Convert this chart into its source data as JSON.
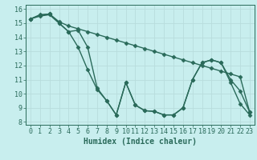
{
  "xlabel": "Humidex (Indice chaleur)",
  "bg_color": "#c8eeee",
  "grid_color": "#b8dddd",
  "line_color": "#2a6a5a",
  "xlim": [
    -0.5,
    23.5
  ],
  "ylim": [
    7.8,
    16.3
  ],
  "yticks": [
    8,
    9,
    10,
    11,
    12,
    13,
    14,
    15,
    16
  ],
  "xticks": [
    0,
    1,
    2,
    3,
    4,
    5,
    6,
    7,
    8,
    9,
    10,
    11,
    12,
    13,
    14,
    15,
    16,
    17,
    18,
    19,
    20,
    21,
    22,
    23
  ],
  "line1_x": [
    0,
    1,
    2,
    3,
    4,
    5,
    6,
    7,
    8,
    9,
    10,
    11,
    12,
    13,
    14,
    15,
    16,
    17,
    18,
    19,
    20,
    21,
    22,
    23
  ],
  "line1_y": [
    15.3,
    15.6,
    15.65,
    15.1,
    14.8,
    14.6,
    14.4,
    14.2,
    14.0,
    13.8,
    13.6,
    13.4,
    13.2,
    13.0,
    12.8,
    12.6,
    12.4,
    12.2,
    12.0,
    11.8,
    11.6,
    11.4,
    11.2,
    8.7
  ],
  "line2_x": [
    0,
    1,
    2,
    3,
    4,
    5,
    6,
    7,
    8,
    9,
    10,
    11,
    12,
    13,
    14,
    15,
    16,
    17,
    18,
    19,
    20,
    21,
    22,
    23
  ],
  "line2_y": [
    15.3,
    15.55,
    15.65,
    15.0,
    14.4,
    13.3,
    11.7,
    10.3,
    9.5,
    8.5,
    10.8,
    9.2,
    8.8,
    8.75,
    8.5,
    8.5,
    9.0,
    11.0,
    12.2,
    12.4,
    12.2,
    11.0,
    10.2,
    8.7
  ],
  "line3_x": [
    0,
    1,
    2,
    3,
    4,
    5,
    6,
    7,
    8,
    9,
    10,
    11,
    12,
    13,
    14,
    15,
    16,
    17,
    18,
    19,
    20,
    21,
    22,
    23
  ],
  "line3_y": [
    15.3,
    15.5,
    15.6,
    15.0,
    14.4,
    14.5,
    13.3,
    10.4,
    9.5,
    8.5,
    10.8,
    9.2,
    8.8,
    8.75,
    8.5,
    8.5,
    9.0,
    11.0,
    12.2,
    12.4,
    12.2,
    10.8,
    9.3,
    8.5
  ],
  "marker": "D",
  "markersize": 2.5,
  "linewidth": 1.0,
  "xlabel_fontsize": 7,
  "tick_fontsize": 6
}
